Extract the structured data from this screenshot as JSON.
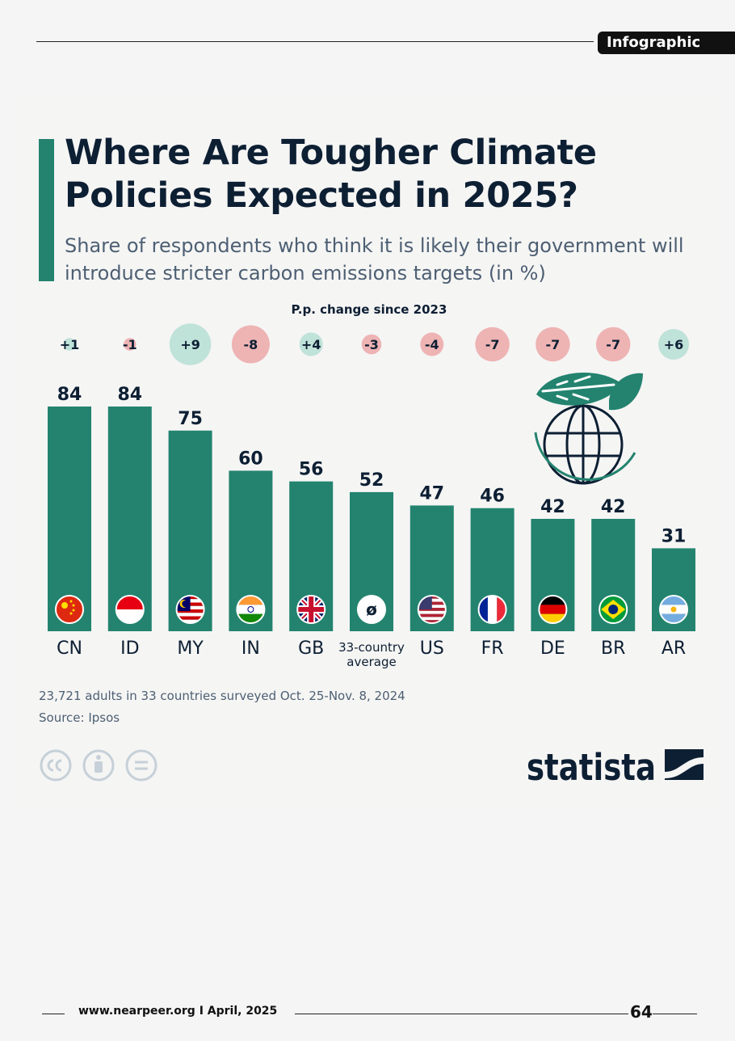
{
  "page": {
    "tag": "Infographic",
    "footer_text": "www.nearpeer.org I April, 2025",
    "page_number": "64"
  },
  "chart_data": {
    "type": "bar",
    "title": "Where Are Tougher Climate Policies Expected in 2025?",
    "subtitle": "Share of respondents who think it is likely their government will introduce stricter carbon emissions targets (in %)",
    "change_label": "P.p. change since 2023",
    "categories": [
      "CN",
      "ID",
      "MY",
      "IN",
      "GB",
      "33-country average",
      "US",
      "FR",
      "DE",
      "BR",
      "AR"
    ],
    "values": [
      84,
      84,
      75,
      60,
      56,
      52,
      47,
      46,
      42,
      42,
      31
    ],
    "change_labels": [
      "+1",
      "-1",
      "+9",
      "-8",
      "+4",
      "-3",
      "-4",
      "-7",
      "-7",
      "-7",
      "+6"
    ],
    "changes": [
      1,
      -1,
      9,
      -8,
      4,
      -3,
      -4,
      -7,
      -7,
      -7,
      6
    ],
    "ylim": [
      0,
      100
    ],
    "bar_color": "#23836f",
    "positive_color": "#bfe2d9",
    "negative_color": "#eeb3b3",
    "average_symbol": "ø",
    "footnote": "23,721 adults in 33 countries surveyed Oct. 25-Nov. 8, 2024",
    "source": "Source: Ipsos",
    "grid": false,
    "legend": "none"
  },
  "branding": {
    "logo_text": "statista",
    "icons": [
      "cc-icon",
      "by-icon",
      "nd-icon",
      "statista-logo-icon",
      "globe-leaf-icon"
    ]
  }
}
